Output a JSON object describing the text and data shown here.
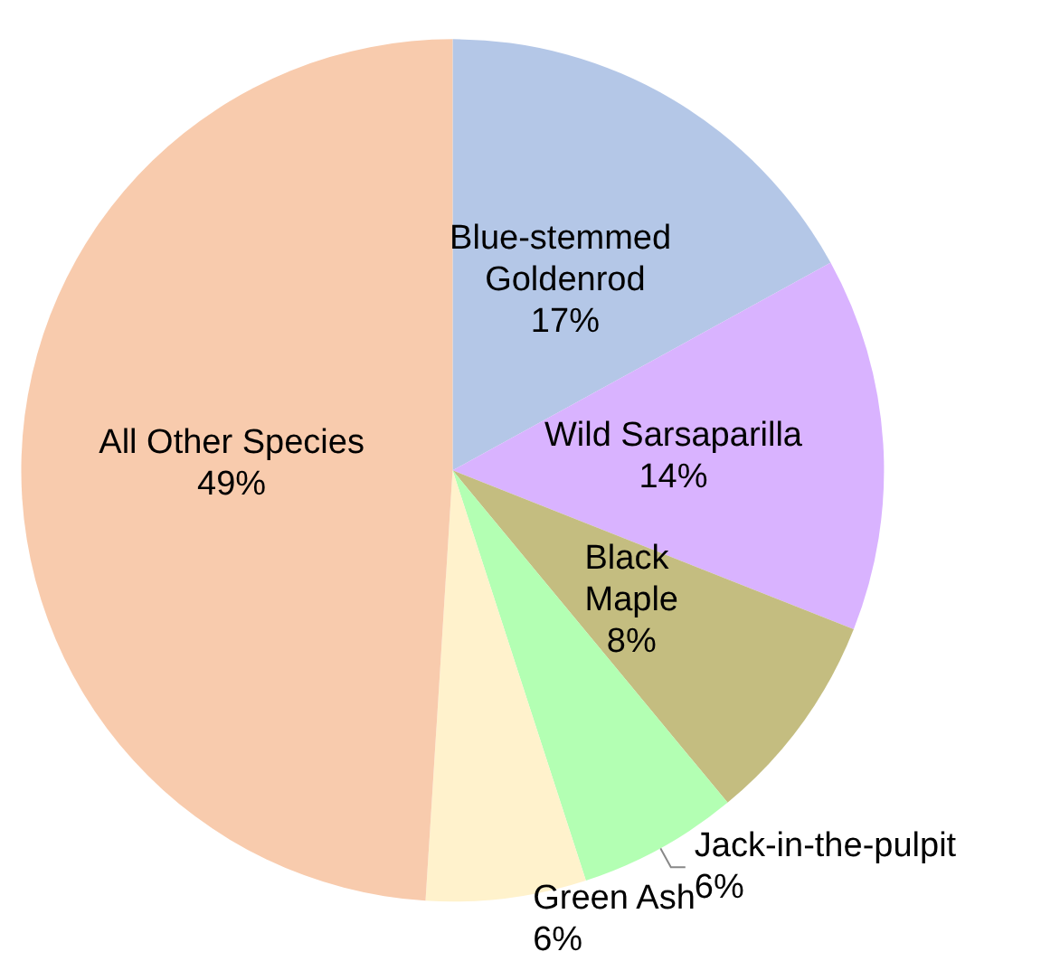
{
  "chart_data": {
    "type": "pie",
    "categories": [
      "Blue-stemmed Goldenrod",
      "Wild Sarsaparilla",
      "Black Maple",
      "Jack-in-the-pulpit",
      "Green Ash",
      "All Other Species"
    ],
    "values": [
      17,
      14,
      8,
      6,
      6,
      49
    ],
    "value_labels": [
      "17%",
      "14%",
      "8%",
      "6%",
      "6%",
      "49%"
    ],
    "colors": [
      "#b4c7e7",
      "#d9b3ff",
      "#c4bd80",
      "#b3ffb3",
      "#fff2cc",
      "#f8cbad"
    ],
    "legend": false
  }
}
